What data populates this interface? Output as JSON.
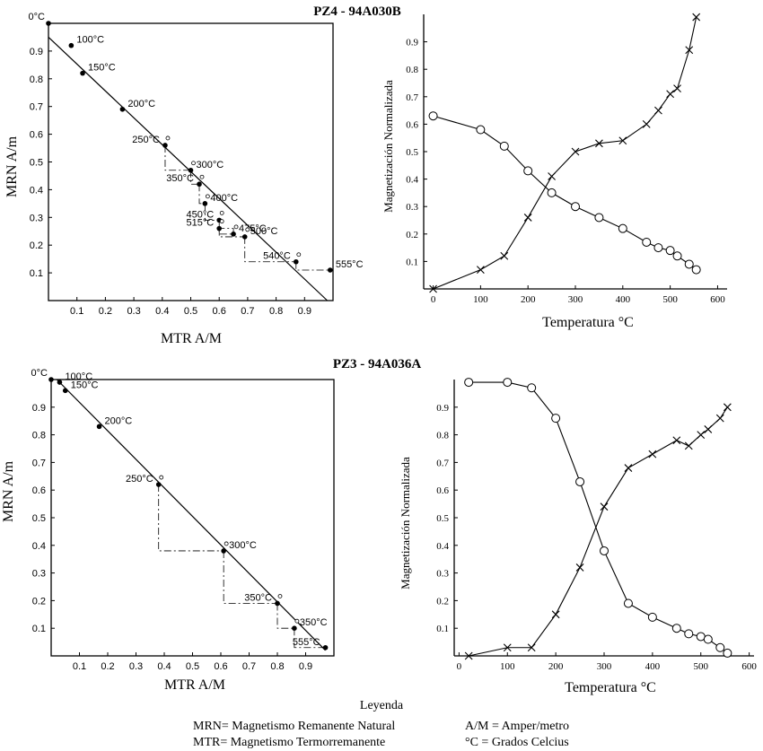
{
  "legend": {
    "title": "Leyenda",
    "lines": [
      "MRN= Magnetismo Remanente Natural",
      "MTR= Magnetismo Termorremanente",
      "A/M = Amper/metro",
      "°C    = Grados Celcius"
    ]
  },
  "chart_data": [
    {
      "id": "pz4-arai",
      "type": "scatter",
      "title": "PZ4 - 94A030B",
      "xlabel": "MTR A/M",
      "ylabel": "MRN A/m",
      "xlim": [
        0,
        1.0
      ],
      "ylim": [
        0,
        1.0
      ],
      "x_ticks": [
        "0.1",
        "0.2",
        "0.3",
        "0.4",
        "0.5",
        "0.6",
        "0.7",
        "0.8",
        "0.9"
      ],
      "y_ticks": [
        "0.1",
        "0.2",
        "0.3",
        "0.4",
        "0.5",
        "0.6",
        "0.7",
        "0.8",
        "0.9"
      ],
      "points": [
        {
          "x": 0.0,
          "y": 1.0,
          "label": "0°C"
        },
        {
          "x": 0.08,
          "y": 0.92,
          "label": "100°C"
        },
        {
          "x": 0.12,
          "y": 0.82,
          "label": "150°C"
        },
        {
          "x": 0.26,
          "y": 0.69,
          "label": "200°C"
        },
        {
          "x": 0.41,
          "y": 0.56,
          "label": "250°C"
        },
        {
          "x": 0.5,
          "y": 0.47,
          "label": "300°C"
        },
        {
          "x": 0.53,
          "y": 0.42,
          "label": "350°C"
        },
        {
          "x": 0.55,
          "y": 0.35,
          "label": "400°C"
        },
        {
          "x": 0.6,
          "y": 0.29,
          "label": "450°C"
        },
        {
          "x": 0.65,
          "y": 0.24,
          "label": "475°C"
        },
        {
          "x": 0.6,
          "y": 0.26,
          "label": "515°C"
        },
        {
          "x": 0.69,
          "y": 0.23,
          "label": "500°C"
        },
        {
          "x": 0.87,
          "y": 0.14,
          "label": "540°C"
        },
        {
          "x": 0.99,
          "y": 0.11,
          "label": "555°C"
        }
      ],
      "fit_line": [
        [
          0,
          0.95
        ],
        [
          0.98,
          0
        ]
      ]
    },
    {
      "id": "pz4-mag",
      "type": "line",
      "xlabel": "Temperatura °C",
      "ylabel": "Magnetización Normalizada",
      "xlim": [
        -20,
        620
      ],
      "ylim": [
        0,
        1.0
      ],
      "x_ticks": [
        "0",
        "100",
        "200",
        "300",
        "400",
        "500",
        "600"
      ],
      "y_ticks": [
        "0.1",
        "0.2",
        "0.3",
        "0.4",
        "0.5",
        "0.6",
        "0.7",
        "0.8",
        "0.9"
      ],
      "series": [
        {
          "name": "o",
          "x": [
            0,
            100,
            150,
            200,
            250,
            300,
            350,
            400,
            450,
            475,
            500,
            515,
            540,
            555
          ],
          "values": [
            0.63,
            0.58,
            0.52,
            0.43,
            0.35,
            0.3,
            0.26,
            0.22,
            0.17,
            0.15,
            0.14,
            0.12,
            0.09,
            0.07
          ]
        },
        {
          "name": "x",
          "x": [
            0,
            100,
            150,
            200,
            250,
            300,
            350,
            400,
            450,
            475,
            500,
            515,
            540,
            555
          ],
          "values": [
            0.0,
            0.07,
            0.12,
            0.26,
            0.41,
            0.5,
            0.53,
            0.54,
            0.6,
            0.65,
            0.71,
            0.73,
            0.87,
            0.99
          ]
        }
      ]
    },
    {
      "id": "pz3-arai",
      "type": "scatter",
      "title": "PZ3 - 94A036A",
      "xlabel": "MTR A/M",
      "ylabel": "MRN A/m",
      "xlim": [
        0,
        1.0
      ],
      "ylim": [
        0,
        1.0
      ],
      "x_ticks": [
        "0.1",
        "0.2",
        "0.3",
        "0.4",
        "0.5",
        "0.6",
        "0.7",
        "0.8",
        "0.9"
      ],
      "y_ticks": [
        "0.1",
        "0.2",
        "0.3",
        "0.4",
        "0.5",
        "0.6",
        "0.7",
        "0.8",
        "0.9"
      ],
      "points": [
        {
          "x": 0.0,
          "y": 1.0,
          "label": "0°C"
        },
        {
          "x": 0.03,
          "y": 0.99,
          "label": "100°C"
        },
        {
          "x": 0.05,
          "y": 0.96,
          "label": "150°C"
        },
        {
          "x": 0.17,
          "y": 0.83,
          "label": "200°C"
        },
        {
          "x": 0.38,
          "y": 0.62,
          "label": "250°C"
        },
        {
          "x": 0.61,
          "y": 0.38,
          "label": "300°C"
        },
        {
          "x": 0.8,
          "y": 0.19,
          "label": "350°C"
        },
        {
          "x": 0.86,
          "y": 0.1,
          "label": "350°C"
        },
        {
          "x": 0.97,
          "y": 0.03,
          "label": "555°C"
        }
      ],
      "fit_line": [
        [
          0.02,
          1.0
        ],
        [
          0.97,
          0.02
        ]
      ]
    },
    {
      "id": "pz3-mag",
      "type": "line",
      "xlabel": "Temperatura °C",
      "ylabel": "Magnetización Normalizada",
      "xlim": [
        -10,
        610
      ],
      "ylim": [
        0,
        1.0
      ],
      "x_ticks": [
        "0",
        "100",
        "200",
        "300",
        "400",
        "500",
        "600"
      ],
      "y_ticks": [
        "0.1",
        "0.2",
        "0.3",
        "0.4",
        "0.5",
        "0.6",
        "0.7",
        "0.8",
        "0.9"
      ],
      "series": [
        {
          "name": "o",
          "x": [
            20,
            100,
            150,
            200,
            250,
            300,
            350,
            400,
            450,
            475,
            500,
            515,
            540,
            555
          ],
          "values": [
            0.99,
            0.99,
            0.97,
            0.86,
            0.63,
            0.38,
            0.19,
            0.14,
            0.1,
            0.08,
            0.07,
            0.06,
            0.03,
            0.01
          ]
        },
        {
          "name": "x",
          "x": [
            20,
            100,
            150,
            200,
            250,
            300,
            350,
            400,
            450,
            475,
            500,
            515,
            540,
            555
          ],
          "values": [
            0.0,
            0.03,
            0.03,
            0.15,
            0.32,
            0.54,
            0.68,
            0.73,
            0.78,
            0.76,
            0.8,
            0.82,
            0.86,
            0.9
          ]
        }
      ]
    }
  ]
}
